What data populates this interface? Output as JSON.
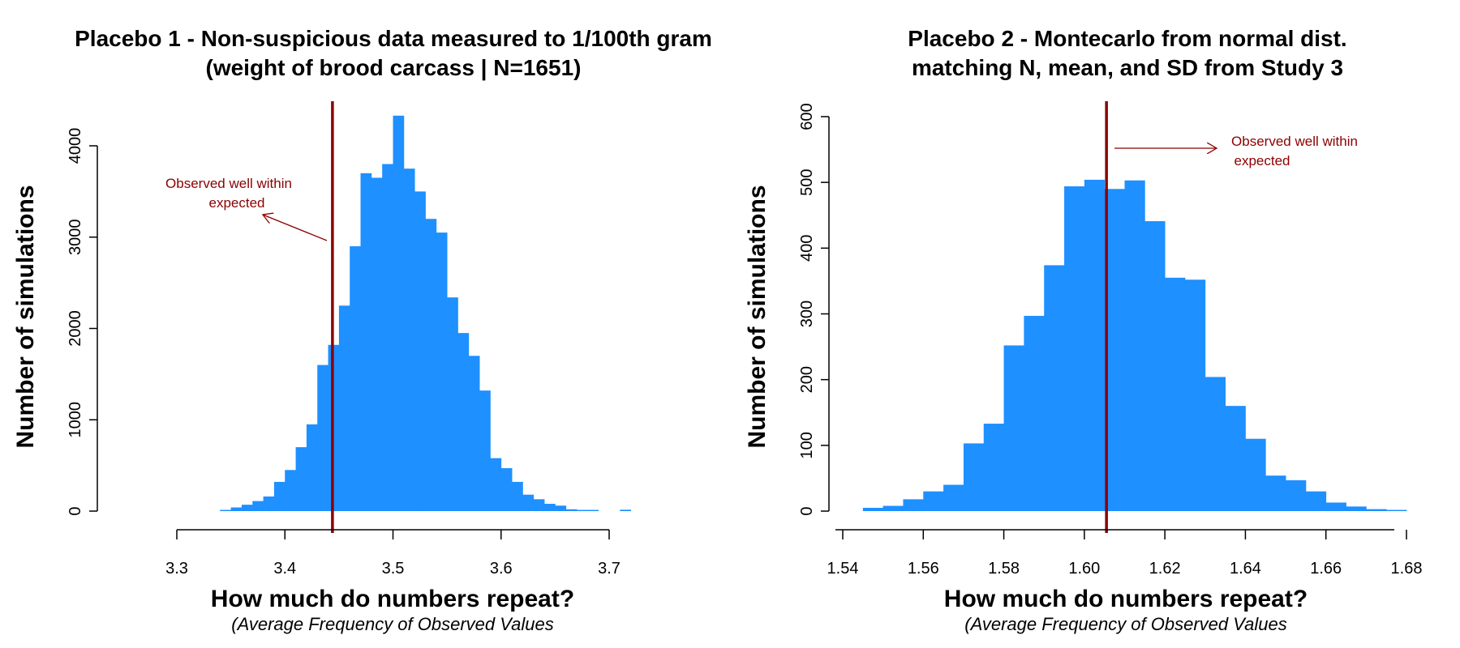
{
  "chart_data": [
    {
      "type": "bar",
      "title_lines": [
        "Placebo 1 - Non-suspicious data measured to 1/100th gram",
        "(weight of brood carcass | N=1651)"
      ],
      "xlabel": "How much do numbers repeat?",
      "xsub": "(Average Frequency of Observed Values",
      "ylabel": "Number of simulations",
      "xlim": [
        3.3,
        3.7
      ],
      "ylim": [
        0,
        4000
      ],
      "x_ticks": [
        "3.3",
        "3.4",
        "3.5",
        "3.6",
        "3.7"
      ],
      "y_ticks": [
        "0",
        "1000",
        "2000",
        "3000",
        "4000"
      ],
      "bin_width": 0.01,
      "bin_starts": [
        3.34,
        3.35,
        3.36,
        3.37,
        3.38,
        3.39,
        3.4,
        3.41,
        3.42,
        3.43,
        3.44,
        3.45,
        3.46,
        3.47,
        3.48,
        3.49,
        3.5,
        3.51,
        3.52,
        3.53,
        3.54,
        3.55,
        3.56,
        3.57,
        3.58,
        3.59,
        3.6,
        3.61,
        3.62,
        3.63,
        3.64,
        3.65,
        3.66,
        3.67,
        3.68,
        3.69,
        3.7,
        3.71
      ],
      "counts": [
        10,
        40,
        70,
        110,
        160,
        320,
        450,
        700,
        950,
        1600,
        1820,
        2250,
        2900,
        3700,
        3650,
        3800,
        4330,
        3750,
        3500,
        3200,
        3050,
        2340,
        1950,
        1700,
        1320,
        580,
        470,
        320,
        180,
        130,
        80,
        60,
        20,
        10,
        5,
        0,
        0,
        15
      ],
      "observed_x": 3.444,
      "observed_color": "#8b0000",
      "bar_color": "#1e90ff",
      "annotation_lines": [
        "Observed well within",
        "expected"
      ]
    },
    {
      "type": "bar",
      "title_lines": [
        "Placebo 2 - Montecarlo from normal dist.",
        "matching N, mean, and SD from Study 3"
      ],
      "xlabel": "How much do numbers repeat?",
      "xsub": "(Average Frequency of Observed Values",
      "ylabel": "Number of simulations",
      "xlim": [
        1.54,
        1.68
      ],
      "ylim": [
        0,
        600
      ],
      "x_ticks": [
        "1.54",
        "1.56",
        "1.58",
        "1.60",
        "1.62",
        "1.64",
        "1.66",
        "1.68"
      ],
      "y_ticks": [
        "0",
        "100",
        "200",
        "300",
        "400",
        "500",
        "600"
      ],
      "bin_width": 0.005,
      "bin_starts": [
        1.545,
        1.55,
        1.555,
        1.56,
        1.565,
        1.57,
        1.575,
        1.58,
        1.585,
        1.59,
        1.595,
        1.6,
        1.605,
        1.61,
        1.615,
        1.62,
        1.625,
        1.63,
        1.635,
        1.64,
        1.645,
        1.65,
        1.655,
        1.66,
        1.665,
        1.67,
        1.675
      ],
      "counts": [
        5,
        8,
        18,
        30,
        40,
        103,
        133,
        252,
        297,
        374,
        494,
        504,
        490,
        503,
        441,
        355,
        352,
        204,
        160,
        110,
        54,
        47,
        30,
        13,
        7,
        3,
        1
      ],
      "observed_x": 1.6055,
      "observed_color": "#8b0000",
      "bar_color": "#1e90ff",
      "annotation_lines": [
        "Observed well within",
        "expected"
      ]
    }
  ]
}
